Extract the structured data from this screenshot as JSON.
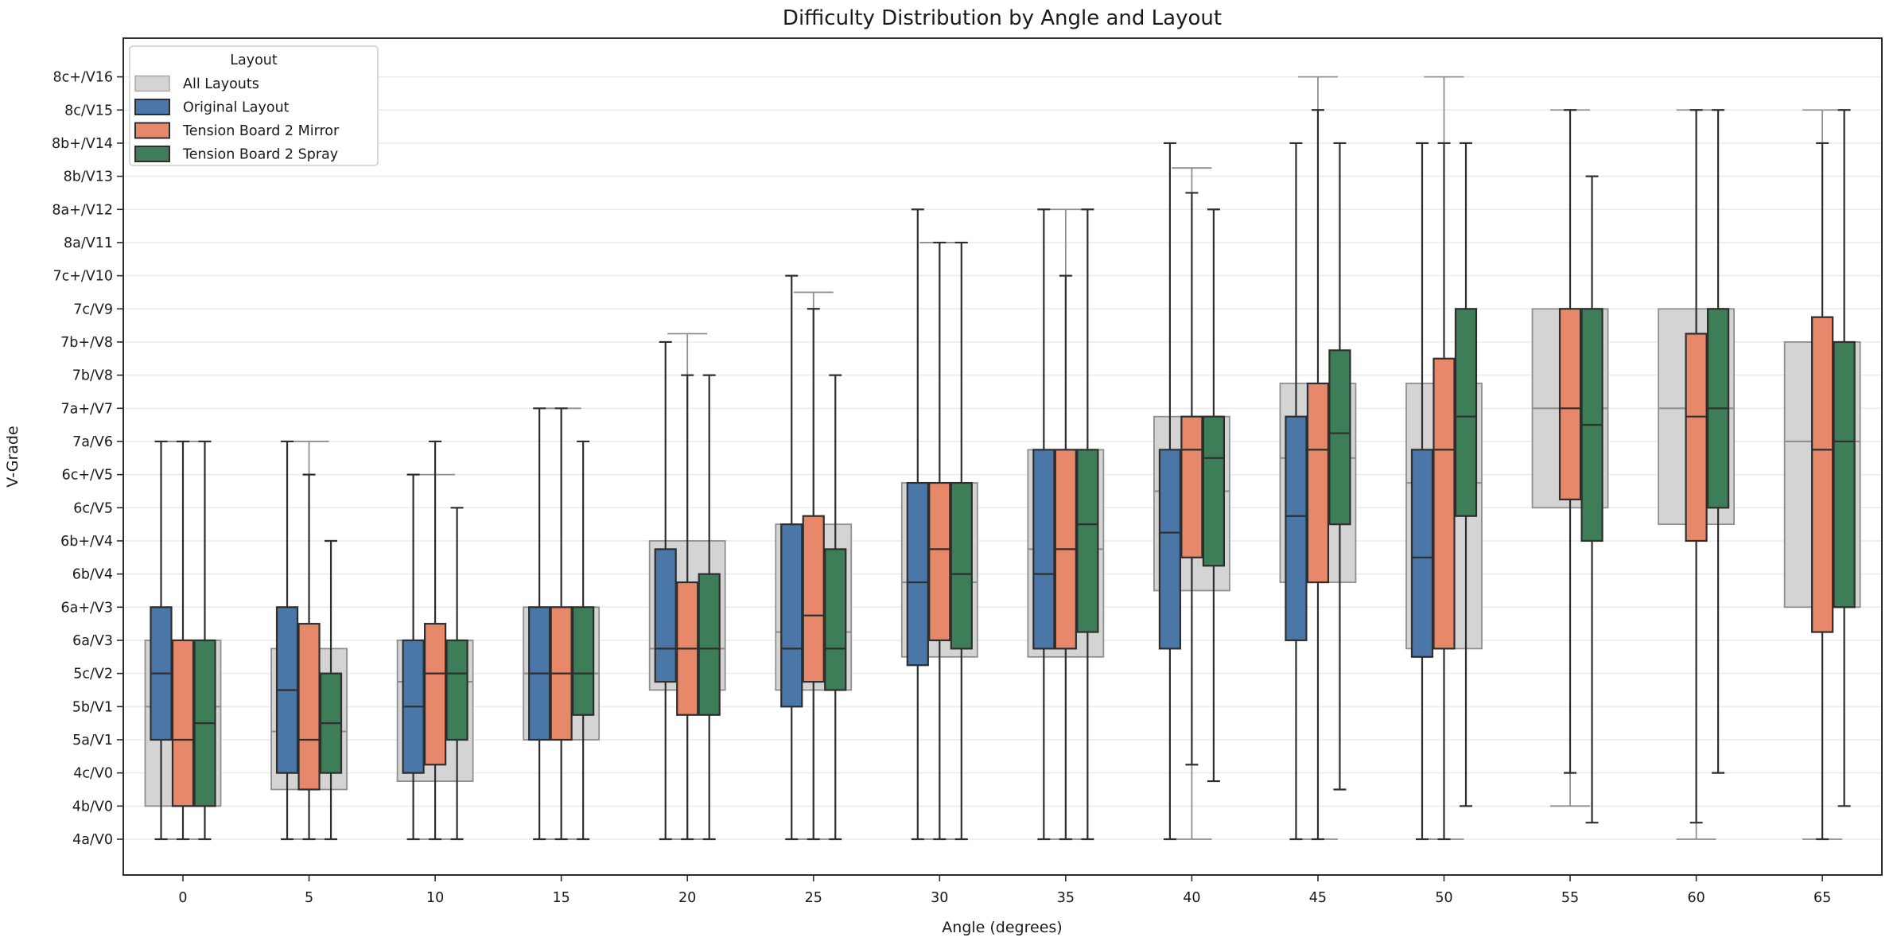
{
  "title": "Difficulty Distribution by Angle and Layout",
  "x_axis": {
    "label": "Angle (degrees)",
    "ticks": [
      "0",
      "5",
      "10",
      "15",
      "20",
      "25",
      "30",
      "35",
      "40",
      "45",
      "50",
      "55",
      "60",
      "65"
    ]
  },
  "y_axis": {
    "label": "V-Grade",
    "ticks": [
      "4a/V0",
      "4b/V0",
      "4c/V0",
      "5a/V1",
      "5b/V1",
      "5c/V2",
      "6a/V3",
      "6a+/V3",
      "6b/V4",
      "6b+/V4",
      "6c/V5",
      "6c+/V5",
      "7a/V6",
      "7a+/V7",
      "7b/V8",
      "7b+/V8",
      "7c/V9",
      "7c+/V10",
      "8a/V11",
      "8a+/V12",
      "8b/V13",
      "8b+/V14",
      "8c/V15",
      "8c+/V16"
    ]
  },
  "legend": {
    "title": "Layout",
    "entries": [
      {
        "label": "All Layouts",
        "color": "#d4d4d4",
        "edge": "#9a9a9a"
      },
      {
        "label": "Original Layout",
        "color": "#4b76a8",
        "edge": "#2e2e2e"
      },
      {
        "label": "Tension Board 2 Mirror",
        "color": "#e8886a",
        "edge": "#2e2e2e"
      },
      {
        "label": "Tension Board 2 Spray",
        "color": "#3d7d57",
        "edge": "#2e2e2e"
      }
    ]
  },
  "chart_data": {
    "type": "box",
    "title": "Difficulty Distribution by Angle and Layout",
    "xlabel": "Angle (degrees)",
    "ylabel": "V-Grade",
    "categories": [
      0,
      5,
      10,
      15,
      20,
      25,
      30,
      35,
      40,
      45,
      50,
      55,
      60,
      65
    ],
    "grade_scale_note": "values are grade indices: 0=4a/V0 ... 23=8c+/V16",
    "grid": true,
    "legend_position": "upper-left",
    "series": [
      {
        "name": "All Layouts",
        "color": "#d4d4d4",
        "edge_color": "#8f8f8f",
        "boxes": [
          {
            "lo": 0,
            "q1": 1,
            "med": 4,
            "q3": 6,
            "hi": 12
          },
          {
            "lo": 0,
            "q1": 1.5,
            "med": 3.25,
            "q3": 5.75,
            "hi": 12
          },
          {
            "lo": 0,
            "q1": 1.75,
            "med": 4.75,
            "q3": 6,
            "hi": 11
          },
          {
            "lo": 0,
            "q1": 3,
            "med": 5,
            "q3": 7,
            "hi": 13
          },
          {
            "lo": 0,
            "q1": 4.5,
            "med": 5.75,
            "q3": 9,
            "hi": 15.25
          },
          {
            "lo": 0,
            "q1": 4.5,
            "med": 6.25,
            "q3": 9.5,
            "hi": 16.5
          },
          {
            "lo": 0,
            "q1": 5.5,
            "med": 7.75,
            "q3": 10.75,
            "hi": 18
          },
          {
            "lo": 0,
            "q1": 5.5,
            "med": 8.75,
            "q3": 11.75,
            "hi": 19
          },
          {
            "lo": 0,
            "q1": 7.5,
            "med": 10.5,
            "q3": 12.75,
            "hi": 20.25
          },
          {
            "lo": 0,
            "q1": 7.75,
            "med": 11.5,
            "q3": 13.75,
            "hi": 23
          },
          {
            "lo": 0,
            "q1": 5.75,
            "med": 10.75,
            "q3": 13.75,
            "hi": 23
          },
          {
            "lo": 1,
            "q1": 10,
            "med": 13,
            "q3": 16,
            "hi": 22
          },
          {
            "lo": 0,
            "q1": 9.5,
            "med": 13,
            "q3": 16,
            "hi": 22
          },
          {
            "lo": 0,
            "q1": 7,
            "med": 12,
            "q3": 15,
            "hi": 22
          }
        ]
      },
      {
        "name": "Original Layout",
        "color": "#4b76a8",
        "edge_color": "#2e2e2e",
        "boxes": [
          {
            "lo": 0,
            "q1": 3,
            "med": 5,
            "q3": 7,
            "hi": 12
          },
          {
            "lo": 0,
            "q1": 2,
            "med": 4.5,
            "q3": 7,
            "hi": 12
          },
          {
            "lo": 0,
            "q1": 2,
            "med": 4,
            "q3": 6,
            "hi": 11
          },
          {
            "lo": 0,
            "q1": 3,
            "med": 5,
            "q3": 7,
            "hi": 13
          },
          {
            "lo": 0,
            "q1": 4.75,
            "med": 5.75,
            "q3": 8.75,
            "hi": 15
          },
          {
            "lo": 0,
            "q1": 4,
            "med": 5.75,
            "q3": 9.5,
            "hi": 17
          },
          {
            "lo": 0,
            "q1": 5.25,
            "med": 7.75,
            "q3": 10.75,
            "hi": 19
          },
          {
            "lo": 0,
            "q1": 5.75,
            "med": 8,
            "q3": 11.75,
            "hi": 19
          },
          {
            "lo": 0,
            "q1": 5.75,
            "med": 9.25,
            "q3": 11.75,
            "hi": 21
          },
          {
            "lo": 0,
            "q1": 6,
            "med": 9.75,
            "q3": 12.75,
            "hi": 21
          },
          {
            "lo": 0,
            "q1": 5.5,
            "med": 8.5,
            "q3": 11.75,
            "hi": 21
          },
          null,
          null,
          null
        ]
      },
      {
        "name": "Tension Board 2 Mirror",
        "color": "#e8886a",
        "edge_color": "#2e2e2e",
        "boxes": [
          {
            "lo": 0,
            "q1": 1,
            "med": 3,
            "q3": 6,
            "hi": 12
          },
          {
            "lo": 0,
            "q1": 1.5,
            "med": 3,
            "q3": 6.5,
            "hi": 11
          },
          {
            "lo": 0,
            "q1": 2.25,
            "med": 5,
            "q3": 6.5,
            "hi": 12
          },
          {
            "lo": 0,
            "q1": 3,
            "med": 5,
            "q3": 7,
            "hi": 13
          },
          {
            "lo": 0,
            "q1": 3.75,
            "med": 5.75,
            "q3": 7.75,
            "hi": 14
          },
          {
            "lo": 0,
            "q1": 4.75,
            "med": 6.75,
            "q3": 9.75,
            "hi": 16
          },
          {
            "lo": 0,
            "q1": 6,
            "med": 8.75,
            "q3": 10.75,
            "hi": 18
          },
          {
            "lo": 0,
            "q1": 5.75,
            "med": 8.75,
            "q3": 11.75,
            "hi": 17
          },
          {
            "lo": 2.25,
            "q1": 8.5,
            "med": 11.75,
            "q3": 12.75,
            "hi": 19.5
          },
          {
            "lo": 0,
            "q1": 7.75,
            "med": 11.75,
            "q3": 13.75,
            "hi": 22
          },
          {
            "lo": 0,
            "q1": 5.75,
            "med": 11.75,
            "q3": 14.5,
            "hi": 21
          },
          {
            "lo": 2,
            "q1": 10.25,
            "med": 13,
            "q3": 16,
            "hi": 22
          },
          {
            "lo": 0.5,
            "q1": 9,
            "med": 12.75,
            "q3": 15.25,
            "hi": 22
          },
          {
            "lo": 0,
            "q1": 6.25,
            "med": 11.75,
            "q3": 15.75,
            "hi": 21
          }
        ]
      },
      {
        "name": "Tension Board 2 Spray",
        "color": "#3d7d57",
        "edge_color": "#2e2e2e",
        "boxes": [
          {
            "lo": 0,
            "q1": 1,
            "med": 3.5,
            "q3": 6,
            "hi": 12
          },
          {
            "lo": 0,
            "q1": 2,
            "med": 3.5,
            "q3": 5,
            "hi": 9
          },
          {
            "lo": 0,
            "q1": 3,
            "med": 5,
            "q3": 6,
            "hi": 10
          },
          {
            "lo": 0,
            "q1": 3.75,
            "med": 5,
            "q3": 7,
            "hi": 12
          },
          {
            "lo": 0,
            "q1": 3.75,
            "med": 5.75,
            "q3": 8,
            "hi": 14
          },
          {
            "lo": 0,
            "q1": 4.5,
            "med": 5.75,
            "q3": 8.75,
            "hi": 14
          },
          {
            "lo": 0,
            "q1": 5.75,
            "med": 8,
            "q3": 10.75,
            "hi": 18
          },
          {
            "lo": 0,
            "q1": 6.25,
            "med": 9.5,
            "q3": 11.75,
            "hi": 19
          },
          {
            "lo": 1.75,
            "q1": 8.25,
            "med": 11.5,
            "q3": 12.75,
            "hi": 19
          },
          {
            "lo": 1.5,
            "q1": 9.5,
            "med": 12.25,
            "q3": 14.75,
            "hi": 21
          },
          {
            "lo": 1,
            "q1": 9.75,
            "med": 12.75,
            "q3": 16,
            "hi": 21
          },
          {
            "lo": 0.5,
            "q1": 9,
            "med": 12.5,
            "q3": 16,
            "hi": 20
          },
          {
            "lo": 2,
            "q1": 10,
            "med": 13,
            "q3": 16,
            "hi": 22
          },
          {
            "lo": 1,
            "q1": 7,
            "med": 12,
            "q3": 15,
            "hi": 22
          }
        ]
      }
    ]
  }
}
